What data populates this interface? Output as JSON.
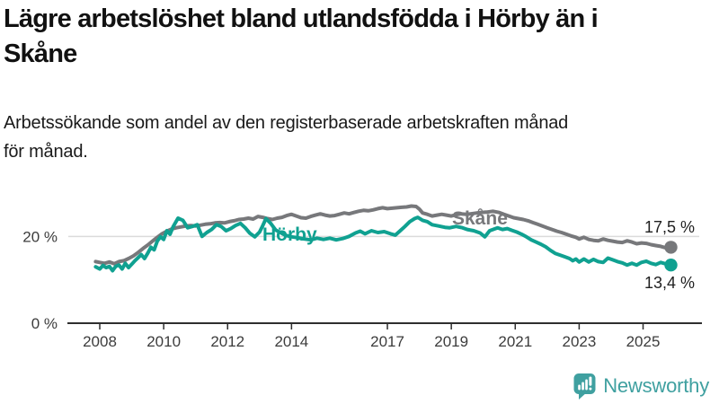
{
  "header": {
    "title_line1": "Lägre arbetslöshet bland utlandsfödda i Hörby än i",
    "title_line2": "Skåne",
    "subtitle_line1": "Arbetssökande som andel av den registerbaserade arbetskraften månad",
    "subtitle_line2": "för månad."
  },
  "branding": {
    "logo_text": "Newsworthy",
    "logo_color": "#3FA0A0"
  },
  "chart_data": {
    "type": "line",
    "unit": "%",
    "x_ticks": [
      2008,
      2010,
      2012,
      2014,
      2017,
      2019,
      2021,
      2023,
      2025
    ],
    "y_ticks": [
      {
        "value": 0,
        "label": "0 %"
      },
      {
        "value": 20,
        "label": "20 %"
      }
    ],
    "x_range": [
      2007.87,
      2025.95
    ],
    "y_range": [
      0,
      30
    ],
    "grid": "single-line-at-20",
    "legend_position": "inline-labels",
    "series": [
      {
        "name": "Skåne",
        "color": "#77787B",
        "end_label": "17,5 %",
        "end_value": 17.5,
        "points": [
          [
            2007.87,
            14.2
          ],
          [
            2008.0,
            14.0
          ],
          [
            2008.15,
            13.8
          ],
          [
            2008.3,
            14.1
          ],
          [
            2008.45,
            13.7
          ],
          [
            2008.6,
            14.2
          ],
          [
            2008.75,
            14.4
          ],
          [
            2008.9,
            14.9
          ],
          [
            2009.05,
            15.5
          ],
          [
            2009.2,
            16.3
          ],
          [
            2009.35,
            17.2
          ],
          [
            2009.5,
            18.0
          ],
          [
            2009.65,
            18.9
          ],
          [
            2009.8,
            19.8
          ],
          [
            2009.95,
            20.6
          ],
          [
            2010.1,
            21.2
          ],
          [
            2010.25,
            21.7
          ],
          [
            2010.4,
            22.0
          ],
          [
            2010.55,
            22.2
          ],
          [
            2010.7,
            22.4
          ],
          [
            2010.85,
            22.5
          ],
          [
            2011.0,
            22.4
          ],
          [
            2011.15,
            22.6
          ],
          [
            2011.3,
            22.8
          ],
          [
            2011.45,
            22.9
          ],
          [
            2011.6,
            23.1
          ],
          [
            2011.75,
            23.2
          ],
          [
            2011.9,
            23.1
          ],
          [
            2012.05,
            23.4
          ],
          [
            2012.2,
            23.6
          ],
          [
            2012.35,
            23.9
          ],
          [
            2012.5,
            24.0
          ],
          [
            2012.65,
            24.2
          ],
          [
            2012.8,
            24.0
          ],
          [
            2012.95,
            24.6
          ],
          [
            2013.1,
            24.4
          ],
          [
            2013.25,
            24.1
          ],
          [
            2013.4,
            23.9
          ],
          [
            2013.55,
            24.2
          ],
          [
            2013.7,
            24.4
          ],
          [
            2013.85,
            24.8
          ],
          [
            2014.0,
            25.1
          ],
          [
            2014.15,
            24.7
          ],
          [
            2014.3,
            24.3
          ],
          [
            2014.45,
            24.2
          ],
          [
            2014.6,
            24.6
          ],
          [
            2014.75,
            24.9
          ],
          [
            2014.9,
            25.2
          ],
          [
            2015.05,
            24.9
          ],
          [
            2015.2,
            24.7
          ],
          [
            2015.35,
            24.8
          ],
          [
            2015.5,
            25.1
          ],
          [
            2015.65,
            25.4
          ],
          [
            2015.8,
            25.2
          ],
          [
            2015.95,
            25.5
          ],
          [
            2016.1,
            25.8
          ],
          [
            2016.25,
            26.0
          ],
          [
            2016.4,
            25.9
          ],
          [
            2016.55,
            26.1
          ],
          [
            2016.7,
            26.4
          ],
          [
            2016.85,
            26.6
          ],
          [
            2017.0,
            26.4
          ],
          [
            2017.15,
            26.5
          ],
          [
            2017.3,
            26.6
          ],
          [
            2017.45,
            26.7
          ],
          [
            2017.6,
            26.8
          ],
          [
            2017.75,
            27.0
          ],
          [
            2017.9,
            26.9
          ],
          [
            2018.0,
            26.3
          ],
          [
            2018.1,
            25.4
          ],
          [
            2018.25,
            25.1
          ],
          [
            2018.4,
            24.7
          ],
          [
            2018.55,
            24.9
          ],
          [
            2018.7,
            25.1
          ],
          [
            2018.85,
            24.9
          ],
          [
            2019.0,
            24.7
          ],
          [
            2019.15,
            25.0
          ],
          [
            2019.3,
            25.2
          ],
          [
            2019.5,
            25.1
          ],
          [
            2019.7,
            25.3
          ],
          [
            2019.9,
            25.5
          ],
          [
            2020.1,
            25.6
          ],
          [
            2020.3,
            25.8
          ],
          [
            2020.5,
            25.5
          ],
          [
            2020.65,
            25.1
          ],
          [
            2020.8,
            24.7
          ],
          [
            2020.95,
            24.3
          ],
          [
            2021.1,
            24.1
          ],
          [
            2021.25,
            23.9
          ],
          [
            2021.4,
            23.6
          ],
          [
            2021.55,
            23.2
          ],
          [
            2021.7,
            22.8
          ],
          [
            2021.85,
            22.4
          ],
          [
            2022.0,
            22.0
          ],
          [
            2022.15,
            21.6
          ],
          [
            2022.3,
            21.2
          ],
          [
            2022.45,
            20.9
          ],
          [
            2022.6,
            20.5
          ],
          [
            2022.75,
            20.1
          ],
          [
            2022.9,
            19.8
          ],
          [
            2023.0,
            19.4
          ],
          [
            2023.15,
            19.8
          ],
          [
            2023.3,
            19.3
          ],
          [
            2023.45,
            19.1
          ],
          [
            2023.6,
            19.0
          ],
          [
            2023.75,
            19.4
          ],
          [
            2023.9,
            19.1
          ],
          [
            2024.05,
            18.9
          ],
          [
            2024.2,
            18.7
          ],
          [
            2024.35,
            18.6
          ],
          [
            2024.5,
            19.0
          ],
          [
            2024.65,
            18.7
          ],
          [
            2024.8,
            18.3
          ],
          [
            2024.95,
            18.5
          ],
          [
            2025.1,
            18.4
          ],
          [
            2025.25,
            18.1
          ],
          [
            2025.4,
            17.9
          ],
          [
            2025.55,
            17.7
          ],
          [
            2025.7,
            17.4
          ],
          [
            2025.87,
            17.5
          ]
        ]
      },
      {
        "name": "Hörby",
        "color": "#10A191",
        "end_label": "13,4 %",
        "end_value": 13.4,
        "points": [
          [
            2007.87,
            13.0
          ],
          [
            2008.0,
            12.5
          ],
          [
            2008.1,
            13.3
          ],
          [
            2008.2,
            12.8
          ],
          [
            2008.3,
            13.1
          ],
          [
            2008.4,
            12.1
          ],
          [
            2008.5,
            13.1
          ],
          [
            2008.6,
            13.4
          ],
          [
            2008.7,
            12.5
          ],
          [
            2008.8,
            13.8
          ],
          [
            2008.9,
            12.8
          ],
          [
            2009.0,
            13.6
          ],
          [
            2009.1,
            14.4
          ],
          [
            2009.2,
            15.1
          ],
          [
            2009.3,
            15.8
          ],
          [
            2009.4,
            14.9
          ],
          [
            2009.5,
            16.1
          ],
          [
            2009.6,
            17.5
          ],
          [
            2009.7,
            16.9
          ],
          [
            2009.8,
            18.9
          ],
          [
            2009.9,
            19.9
          ],
          [
            2010.0,
            19.3
          ],
          [
            2010.1,
            21.3
          ],
          [
            2010.2,
            20.5
          ],
          [
            2010.3,
            22.3
          ],
          [
            2010.45,
            24.2
          ],
          [
            2010.6,
            23.7
          ],
          [
            2010.75,
            22.0
          ],
          [
            2010.9,
            22.3
          ],
          [
            2011.05,
            22.7
          ],
          [
            2011.2,
            20.0
          ],
          [
            2011.35,
            20.9
          ],
          [
            2011.5,
            21.6
          ],
          [
            2011.65,
            22.7
          ],
          [
            2011.8,
            22.3
          ],
          [
            2011.95,
            21.3
          ],
          [
            2012.1,
            21.8
          ],
          [
            2012.25,
            22.5
          ],
          [
            2012.4,
            23.0
          ],
          [
            2012.55,
            22.0
          ],
          [
            2012.7,
            20.7
          ],
          [
            2012.85,
            19.9
          ],
          [
            2013.0,
            21.0
          ],
          [
            2013.1,
            22.5
          ],
          [
            2013.2,
            24.1
          ],
          [
            2013.35,
            23.0
          ],
          [
            2013.5,
            21.5
          ],
          [
            2013.65,
            20.9
          ],
          [
            2013.8,
            20.3
          ],
          [
            2014.0,
            19.9
          ],
          [
            2014.2,
            19.7
          ],
          [
            2014.4,
            19.4
          ],
          [
            2014.6,
            19.2
          ],
          [
            2014.8,
            19.6
          ],
          [
            2015.0,
            19.3
          ],
          [
            2015.2,
            19.6
          ],
          [
            2015.4,
            19.2
          ],
          [
            2015.6,
            19.5
          ],
          [
            2015.8,
            20.0
          ],
          [
            2016.0,
            20.8
          ],
          [
            2016.15,
            21.2
          ],
          [
            2016.3,
            20.6
          ],
          [
            2016.5,
            21.3
          ],
          [
            2016.7,
            20.9
          ],
          [
            2016.9,
            21.1
          ],
          [
            2017.1,
            20.6
          ],
          [
            2017.25,
            20.3
          ],
          [
            2017.4,
            21.3
          ],
          [
            2017.55,
            22.3
          ],
          [
            2017.7,
            23.4
          ],
          [
            2017.85,
            24.1
          ],
          [
            2017.95,
            24.4
          ],
          [
            2018.1,
            23.7
          ],
          [
            2018.25,
            23.4
          ],
          [
            2018.4,
            22.7
          ],
          [
            2018.6,
            22.4
          ],
          [
            2018.8,
            22.1
          ],
          [
            2018.95,
            22.0
          ],
          [
            2019.15,
            22.3
          ],
          [
            2019.35,
            22.0
          ],
          [
            2019.5,
            21.6
          ],
          [
            2019.7,
            21.3
          ],
          [
            2019.9,
            20.8
          ],
          [
            2020.05,
            19.9
          ],
          [
            2020.2,
            21.3
          ],
          [
            2020.45,
            22.0
          ],
          [
            2020.6,
            21.6
          ],
          [
            2020.75,
            21.8
          ],
          [
            2020.9,
            21.4
          ],
          [
            2021.05,
            21.0
          ],
          [
            2021.2,
            20.5
          ],
          [
            2021.35,
            19.9
          ],
          [
            2021.5,
            19.2
          ],
          [
            2021.65,
            18.7
          ],
          [
            2021.8,
            18.2
          ],
          [
            2021.95,
            17.6
          ],
          [
            2022.1,
            16.8
          ],
          [
            2022.25,
            16.1
          ],
          [
            2022.4,
            15.7
          ],
          [
            2022.55,
            15.3
          ],
          [
            2022.7,
            14.9
          ],
          [
            2022.8,
            14.4
          ],
          [
            2022.9,
            14.8
          ],
          [
            2023.0,
            14.1
          ],
          [
            2023.15,
            14.8
          ],
          [
            2023.3,
            14.1
          ],
          [
            2023.45,
            14.7
          ],
          [
            2023.6,
            14.2
          ],
          [
            2023.75,
            14.0
          ],
          [
            2023.9,
            15.0
          ],
          [
            2024.05,
            14.6
          ],
          [
            2024.2,
            14.2
          ],
          [
            2024.35,
            13.9
          ],
          [
            2024.5,
            13.4
          ],
          [
            2024.65,
            13.8
          ],
          [
            2024.8,
            13.4
          ],
          [
            2024.95,
            14.0
          ],
          [
            2025.1,
            14.3
          ],
          [
            2025.25,
            13.8
          ],
          [
            2025.4,
            13.5
          ],
          [
            2025.55,
            14.0
          ],
          [
            2025.7,
            13.7
          ],
          [
            2025.87,
            13.4
          ]
        ]
      }
    ]
  }
}
